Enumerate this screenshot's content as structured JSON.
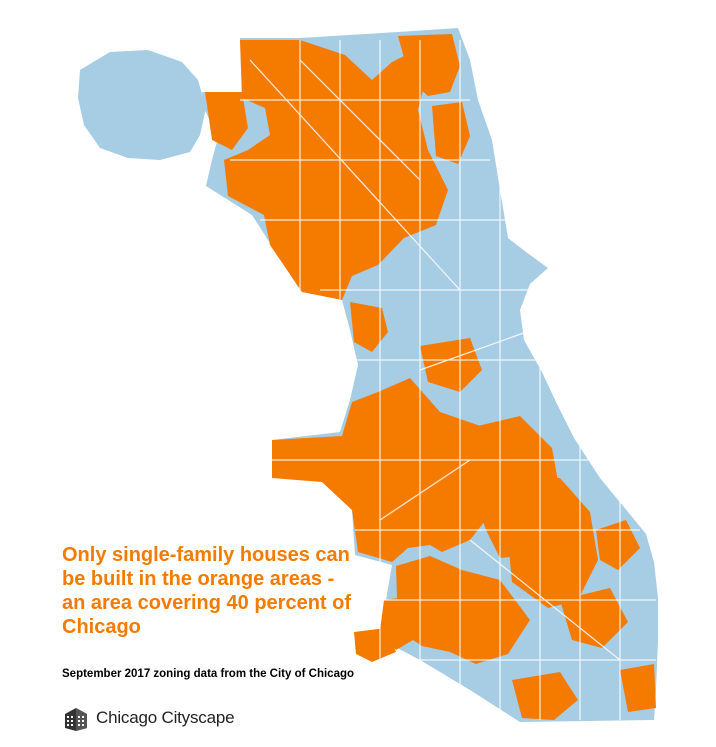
{
  "headline": "Only single-family houses can be built in the orange areas - an area covering 40 percent of Chicago",
  "source": "September 2017 zoning data from the City of Chicago",
  "brand": {
    "name": "Chicago Cityscape",
    "icon": "building-icon"
  },
  "colors": {
    "city": "#a6cde3",
    "single_family": "#f47b00",
    "headline": "#f47b00",
    "background": "#ffffff"
  },
  "legend": {
    "single_family_share_percent": 40
  }
}
